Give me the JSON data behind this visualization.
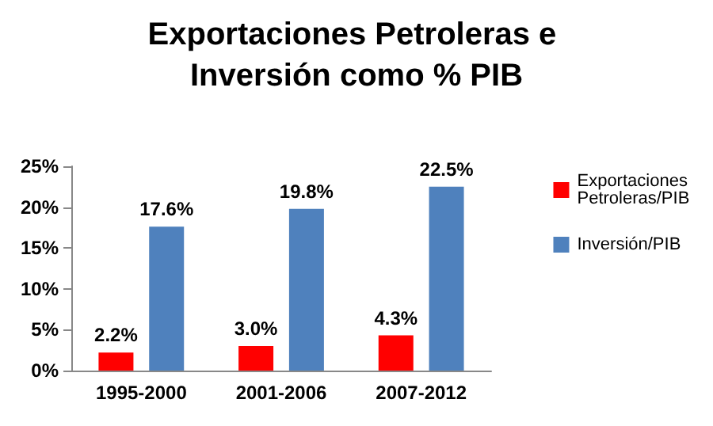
{
  "chart_data": {
    "type": "bar",
    "title": "Exportaciones Petroleras e Inversión como % PIB",
    "categories": [
      "1995-2000",
      "2001-2006",
      "2007-2012"
    ],
    "series": [
      {
        "name": "Exportaciones Petroleras/PIB",
        "color": "#ff0000",
        "values": [
          2.2,
          3.0,
          4.3
        ],
        "value_labels": [
          "2.2%",
          "3.0%",
          "4.3%"
        ]
      },
      {
        "name": "Inversión/PIB",
        "color": "#4f81bd",
        "values": [
          17.6,
          19.8,
          22.5
        ],
        "value_labels": [
          "17.6%",
          "19.8%",
          "22.5%"
        ]
      }
    ],
    "ylim": [
      0,
      25
    ],
    "yticks": [
      {
        "value": 0,
        "label": "0%"
      },
      {
        "value": 5,
        "label": "5%"
      },
      {
        "value": 10,
        "label": "10%"
      },
      {
        "value": 15,
        "label": "15%"
      },
      {
        "value": 20,
        "label": "20%"
      },
      {
        "value": 25,
        "label": "25%"
      }
    ],
    "legend": "right"
  }
}
